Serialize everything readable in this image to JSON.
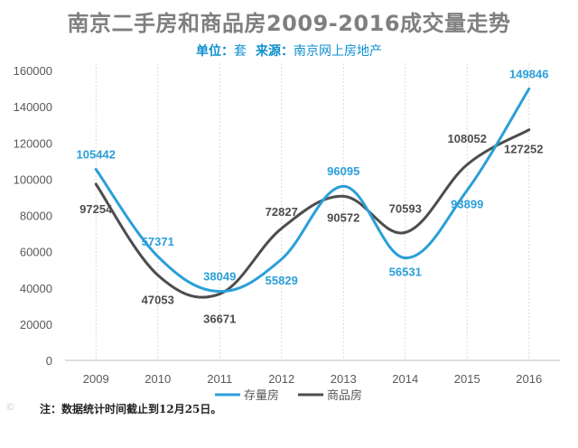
{
  "title": "南京二手房和商品房2009-2016成交量走势",
  "subtitle": {
    "unit_label": "单位：",
    "unit_value": "套",
    "source_label": "来源：",
    "source_value": "南京网上房地产"
  },
  "footnote": "注：数据统计时间截止到12月25日。",
  "watermark": "©",
  "colors": {
    "series_1": "#2a9fd8",
    "series_2": "#4d4d4d",
    "grid": "#d9d9d9",
    "axis_text": "#595959"
  },
  "chart_data": {
    "type": "line",
    "x": [
      "2009",
      "2010",
      "2011",
      "2012",
      "2013",
      "2014",
      "2015",
      "2016"
    ],
    "ylim": [
      0,
      160000
    ],
    "yticks": [
      0,
      20000,
      40000,
      60000,
      80000,
      100000,
      120000,
      140000,
      160000
    ],
    "grid": "vertical dashed",
    "legend": "bottom-center",
    "smooth": true,
    "series": [
      {
        "name": "存量房",
        "values": [
          105442,
          57371,
          38049,
          55829,
          96095,
          56531,
          93899,
          149846
        ]
      },
      {
        "name": "商品房",
        "values": [
          97254,
          47053,
          36671,
          72827,
          90572,
          70593,
          108052,
          127252
        ]
      }
    ]
  }
}
